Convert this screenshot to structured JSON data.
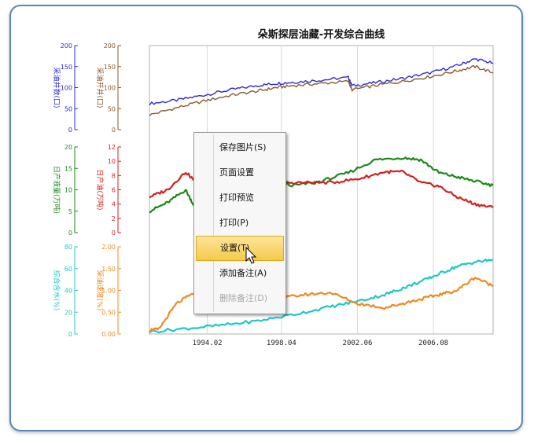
{
  "chart_data": {
    "type": "line",
    "title": "朵斯探层油藏-开发综合曲线",
    "x_tick_labels": [
      "1994.02",
      "1998.04",
      "2002.06",
      "2006.08"
    ],
    "x_range": [
      1991.0,
      2010.0
    ],
    "axes": [
      {
        "id": "ax_blue",
        "label": "采油井数(口)",
        "color": "#2b2bd4",
        "ticks": [
          "200",
          "150",
          "100",
          "50",
          "0"
        ],
        "range": [
          0,
          200
        ],
        "band": "top"
      },
      {
        "id": "ax_brown",
        "label": "采油开井(口)",
        "color": "#8a5a2b",
        "ticks": [
          "200",
          "150",
          "100",
          "50",
          "0"
        ],
        "range": [
          0,
          200
        ],
        "band": "top"
      },
      {
        "id": "ax_green",
        "label": "日产液量(万吨)",
        "color": "#1a8a1a",
        "ticks": [
          "20",
          "15",
          "10",
          "5",
          "0"
        ],
        "range": [
          0,
          20
        ],
        "band": "mid"
      },
      {
        "id": "ax_red",
        "label": "日产油(万吨)",
        "color": "#d42020",
        "ticks": [
          "12",
          "10",
          "8",
          "6",
          "4",
          "2",
          "0"
        ],
        "range": [
          0,
          12
        ],
        "band": "mid"
      },
      {
        "id": "ax_cyan",
        "label": "综合含水(%)",
        "color": "#1ec8c8",
        "ticks": [
          "80",
          "60",
          "40",
          "20",
          "0"
        ],
        "range": [
          0,
          80
        ],
        "band": "bottom"
      },
      {
        "id": "ax_orange",
        "label": "采油速度(%)",
        "color": "#f08a20",
        "ticks": [
          "2.00",
          "1.50",
          "1.00",
          "0.50",
          "0.00"
        ],
        "range": [
          0,
          2
        ],
        "band": "bottom"
      }
    ],
    "series": [
      {
        "axis": "ax_blue",
        "color": "#2b2bd4",
        "x": [
          1991.0,
          1992.5,
          1994.0,
          1995.5,
          1997.0,
          1998.0,
          1999.0,
          2000.5,
          2002.0,
          2002.2,
          2003.5,
          2005.0,
          2006.5,
          2008.0,
          2009.0,
          2010.0
        ],
        "y": [
          62,
          70,
          82,
          95,
          105,
          110,
          113,
          118,
          124,
          104,
          112,
          122,
          135,
          152,
          168,
          158
        ]
      },
      {
        "axis": "ax_brown",
        "color": "#8a5a2b",
        "x": [
          1991.0,
          1992.5,
          1994.0,
          1995.5,
          1997.0,
          1998.0,
          1999.0,
          2000.5,
          2002.0,
          2002.2,
          2003.5,
          2005.0,
          2006.5,
          2008.0,
          2009.0,
          2010.0
        ],
        "y": [
          35,
          52,
          68,
          82,
          92,
          100,
          105,
          110,
          115,
          95,
          105,
          115,
          126,
          140,
          150,
          135
        ]
      },
      {
        "axis": "ax_green",
        "color": "#1a8a1a",
        "x": [
          1991.0,
          1992.0,
          1993.0,
          1993.5,
          1994.5,
          1996.0,
          1997.5,
          1999.0,
          2000.5,
          2002.0,
          2003.5,
          2005.0,
          2006.0,
          2007.0,
          2008.0,
          2009.0,
          2010.0
        ],
        "y": [
          5,
          7,
          10,
          6,
          9,
          10,
          12,
          11,
          12,
          14,
          17,
          17.5,
          17,
          14,
          13,
          12,
          11
        ]
      },
      {
        "axis": "ax_red",
        "color": "#d42020",
        "x": [
          1991.0,
          1992.0,
          1993.0,
          1994.0,
          1995.0,
          1996.5,
          1998.0,
          1999.5,
          2001.0,
          2002.5,
          2004.0,
          2005.0,
          2006.0,
          2007.0,
          2008.0,
          2009.0,
          2010.0
        ],
        "y": [
          5,
          6,
          8.5,
          6,
          6.5,
          7,
          7,
          7,
          7,
          7.5,
          8.5,
          8.5,
          7,
          6.5,
          5,
          4,
          3.5
        ]
      },
      {
        "axis": "ax_cyan",
        "color": "#1ec8c8",
        "x": [
          1991.0,
          1993.0,
          1995.0,
          1997.0,
          1999.0,
          2001.0,
          2002.5,
          2004.0,
          2005.0,
          2006.0,
          2007.0,
          2008.0,
          2009.0,
          2010.0
        ],
        "y": [
          2,
          5,
          8,
          12,
          18,
          25,
          30,
          36,
          42,
          48,
          55,
          62,
          66,
          68
        ]
      },
      {
        "axis": "ax_orange",
        "color": "#f08a20",
        "x": [
          1991.0,
          1991.5,
          1992.5,
          1993.5,
          1995.0,
          1996.5,
          1998.0,
          1999.5,
          2001.0,
          2002.5,
          2004.0,
          2005.0,
          2006.0,
          2007.0,
          2008.0,
          2009.0,
          2010.0
        ],
        "y": [
          0.1,
          0.1,
          0.7,
          0.95,
          1.0,
          1.05,
          0.8,
          0.9,
          0.95,
          0.7,
          0.6,
          0.7,
          0.8,
          0.9,
          1.0,
          1.3,
          1.1
        ]
      }
    ],
    "grid": "vertical"
  },
  "context_menu": {
    "items": [
      {
        "label": "保存图片(S)",
        "enabled": true,
        "highlighted": false
      },
      {
        "label": "页面设置",
        "enabled": true,
        "highlighted": false
      },
      {
        "label": "打印预览",
        "enabled": true,
        "highlighted": false
      },
      {
        "label": "打印(P)",
        "enabled": true,
        "highlighted": false
      },
      {
        "label": "设置(T)",
        "enabled": true,
        "highlighted": true
      },
      {
        "label": "添加备注(A)",
        "enabled": true,
        "highlighted": false
      },
      {
        "label": "删除备注(D)",
        "enabled": false,
        "highlighted": false
      }
    ]
  },
  "colors": {
    "panel_border": "#5a86b8",
    "grid": "#d9d9d9",
    "plot_border": "#b0b0b0"
  }
}
